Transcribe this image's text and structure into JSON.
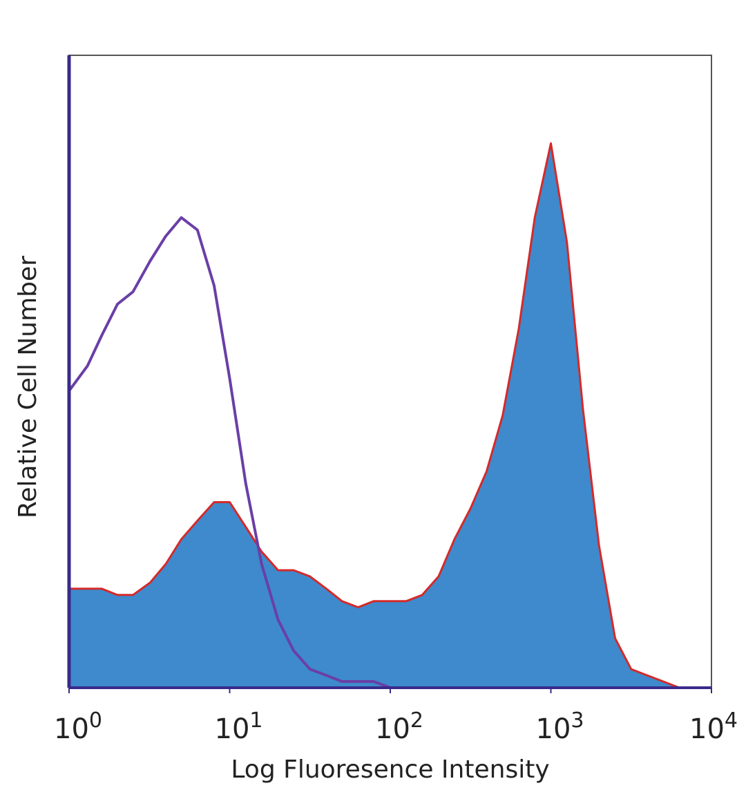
{
  "chart_data": {
    "type": "area",
    "x_scale": "log",
    "xlim": [
      1,
      10000
    ],
    "ylim": [
      0,
      100
    ],
    "xlabel": "Log Fluoresence Intensity",
    "ylabel": "Relative Cell Number",
    "y_ticks_shown": false,
    "grid": false,
    "legend": "none",
    "x_ticks": [
      {
        "base": "10",
        "exp": "0",
        "value": 1
      },
      {
        "base": "10",
        "exp": "1",
        "value": 10
      },
      {
        "base": "10",
        "exp": "2",
        "value": 100
      },
      {
        "base": "10",
        "exp": "3",
        "value": 1000
      },
      {
        "base": "10",
        "exp": "4",
        "value": 10000
      }
    ],
    "series": [
      {
        "color": "#3e8acc",
        "outline_color": "#d42a2a",
        "style": "filled",
        "x": [
          1,
          1.3,
          1.6,
          2,
          2.5,
          3.2,
          4,
          5,
          6.3,
          8,
          10,
          12.6,
          15.8,
          20,
          25,
          31.6,
          40,
          50,
          63,
          79,
          100,
          126,
          158,
          200,
          251,
          316,
          398,
          501,
          631,
          794,
          1000,
          1259,
          1585,
          1995,
          2512,
          3162,
          3981,
          5012,
          6310,
          7943,
          10000
        ],
        "y": [
          16,
          16,
          16,
          15,
          15,
          17,
          20,
          24,
          27,
          30,
          30,
          26,
          22,
          19,
          19,
          18,
          16,
          14,
          13,
          14,
          14,
          14,
          15,
          18,
          24,
          29,
          35,
          44,
          58,
          76,
          88,
          72,
          45,
          23,
          8,
          3,
          2,
          1,
          0,
          0,
          0
        ]
      },
      {
        "color": "#6a3fa6",
        "style": "outline",
        "x": [
          1,
          1.3,
          1.6,
          2,
          2.5,
          3.2,
          4,
          5,
          6.3,
          8,
          10,
          12.6,
          15.8,
          20,
          25,
          31.6,
          40,
          50,
          63,
          79,
          100,
          126,
          158,
          200,
          251,
          316,
          398,
          501,
          631,
          794,
          1000,
          1259,
          1585,
          1995,
          2512,
          3162,
          3981,
          5012,
          6310,
          7943,
          10000
        ],
        "y": [
          48,
          52,
          57,
          62,
          64,
          69,
          73,
          76,
          74,
          65,
          50,
          33,
          20,
          11,
          6,
          3,
          2,
          1,
          1,
          1,
          0,
          0,
          0,
          0,
          0,
          0,
          0,
          0,
          0,
          0,
          0,
          0,
          0,
          0,
          0,
          0,
          0,
          0,
          0,
          0,
          0
        ]
      }
    ]
  }
}
